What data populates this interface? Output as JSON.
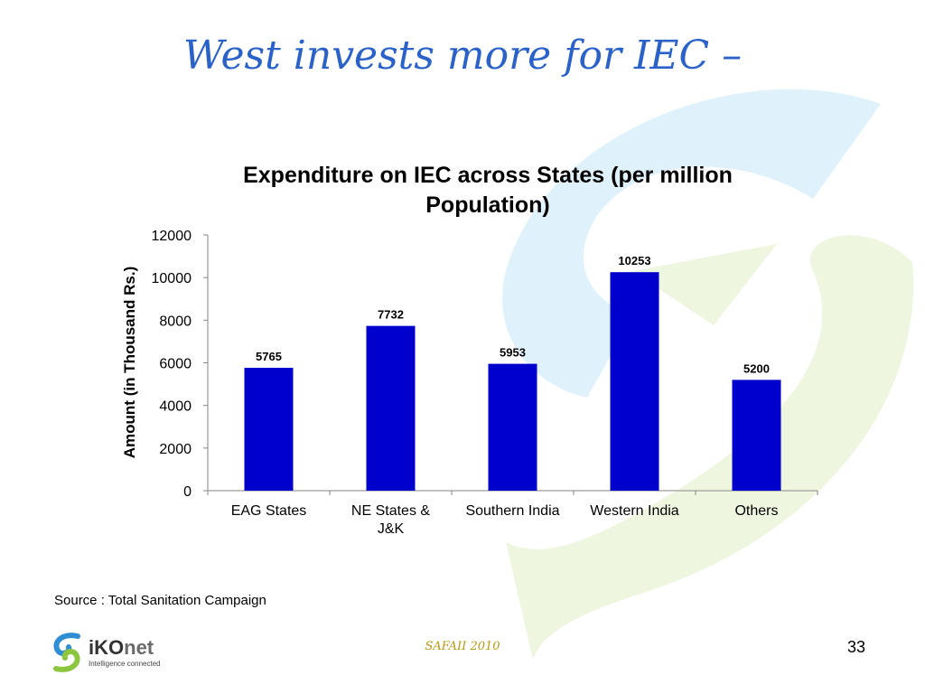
{
  "slide": {
    "title": "West invests more for IEC –",
    "source": "Source : Total Sanitation Campaign",
    "footer_center": "SAFAII 2010",
    "page_number": "33"
  },
  "brand": {
    "name_bold": "iKO",
    "name_light": "net",
    "tagline": "Intelligence connected",
    "colors": {
      "blue": "#2f8fd4",
      "green": "#8cc63f"
    }
  },
  "chart_data": {
    "type": "bar",
    "title": "Expenditure on IEC across States (per million Population)",
    "ylabel": "Amount (in Thousand Rs.)",
    "xlabel": "",
    "categories": [
      "EAG States",
      "NE States & J&K",
      "Southern India",
      "Western India",
      "Others"
    ],
    "values": [
      5765,
      7732,
      5953,
      10253,
      5200
    ],
    "ylim": [
      0,
      12000
    ],
    "yticks": [
      0,
      2000,
      4000,
      6000,
      8000,
      10000,
      12000
    ],
    "bar_color": "#0000cc",
    "data_labels": true,
    "grid": false,
    "legend": "none"
  }
}
